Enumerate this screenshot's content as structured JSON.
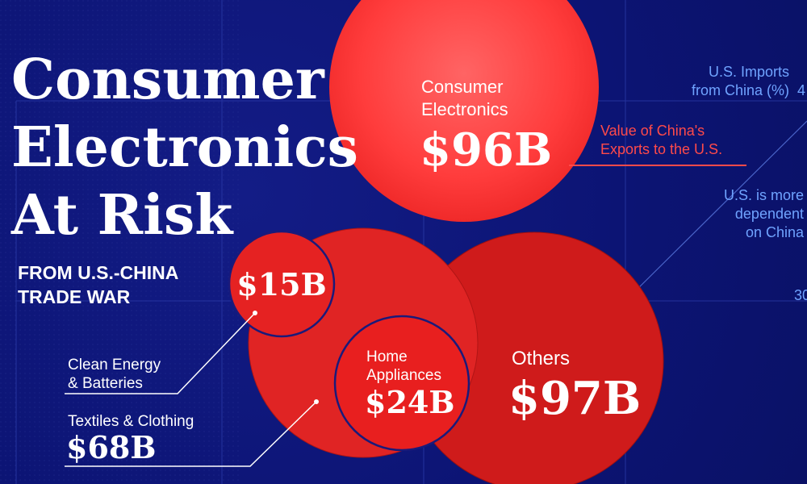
{
  "title": {
    "line1": "Consumer",
    "line2": "Electronics",
    "line3": "At Risk",
    "subtitle_line1": "FROM U.S.-CHINA",
    "subtitle_line2": "TRADE WAR"
  },
  "axis": {
    "label_line1": "U.S. Imports",
    "label_line2": "from China (%)",
    "tick_top": "4",
    "tick_bottom": "30"
  },
  "annotations": {
    "value_line1": "Value of China's",
    "value_line2": "Exports to the U.S.",
    "dependent_line1": "U.S. is more",
    "dependent_line2": "dependent",
    "dependent_line3": "on China"
  },
  "colors": {
    "background": "#0c1474",
    "consumer_electronics": "#f23a3a",
    "other_bubbles": "#d41d1d",
    "accent_text": "#ff4a4a",
    "axis_text": "#6fa3ff"
  },
  "chart_data": {
    "type": "bubble",
    "unit": "B",
    "series": [
      {
        "name": "Consumer Electronics",
        "label_line1": "Consumer",
        "label_line2": "Electronics",
        "value": 96,
        "display": "$96B"
      },
      {
        "name": "Others",
        "label_line1": "Others",
        "value": 97,
        "display": "$97B"
      },
      {
        "name": "Textiles & Clothing",
        "label_line1": "Textiles & Clothing",
        "value": 68,
        "display": "$68B"
      },
      {
        "name": "Home Appliances",
        "label_line1": "Home",
        "label_line2": "Appliances",
        "value": 24,
        "display": "$24B"
      },
      {
        "name": "Clean Energy & Batteries",
        "label_line1": "Clean Energy",
        "label_line2": "& Batteries",
        "value": 15,
        "display": "$15B"
      }
    ]
  }
}
